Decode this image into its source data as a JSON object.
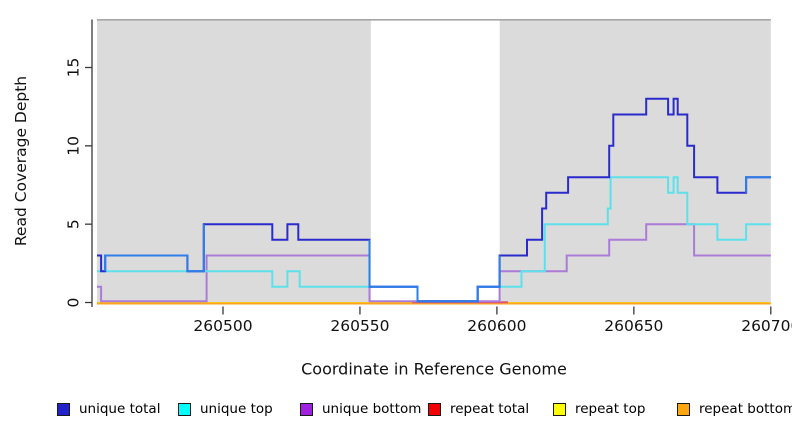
{
  "chart_data": {
    "type": "line",
    "step": true,
    "title": "",
    "xlabel": "Coordinate in Reference Genome",
    "ylabel": "Read Coverage Depth",
    "x_range": [
      260454,
      260700
    ],
    "ylim": [
      0,
      18
    ],
    "grid": false,
    "y_ticks": [
      0,
      5,
      10,
      15
    ],
    "x_ticks": [
      260500,
      260550,
      260600,
      260650,
      260700
    ],
    "shaded_regions": [
      {
        "from": 260454,
        "to": 260554,
        "color": "#dbdbdb"
      },
      {
        "from": 260601,
        "to": 260700,
        "color": "#dbdbdb"
      }
    ],
    "gap_region": {
      "from": 260554,
      "to": 260601,
      "color": "#ffffff"
    },
    "series": [
      {
        "name": "unique total",
        "color": "#2b2bcd",
        "color_segments": [
          {
            "from": 260457,
            "to": 260493,
            "color": "#2f7de8"
          },
          {
            "from": 260553.5,
            "to": 260601,
            "color": "#2f7de8"
          },
          {
            "from": 260691,
            "to": 260700,
            "color": "#2f7de8"
          }
        ],
        "points": [
          [
            260454,
            3
          ],
          [
            260455.5,
            2
          ],
          [
            260457,
            3
          ],
          [
            260487,
            2
          ],
          [
            260493,
            5
          ],
          [
            260518,
            4
          ],
          [
            260523.5,
            5
          ],
          [
            260527.5,
            4
          ],
          [
            260553.5,
            1
          ],
          [
            260571,
            0
          ],
          [
            260593,
            1
          ],
          [
            260601,
            3
          ],
          [
            260611,
            4
          ],
          [
            260616.5,
            6
          ],
          [
            260618,
            7
          ],
          [
            260626,
            8
          ],
          [
            260641,
            10
          ],
          [
            260642.5,
            12
          ],
          [
            260654.5,
            13
          ],
          [
            260662.5,
            12
          ],
          [
            260664.5,
            13
          ],
          [
            260666,
            12
          ],
          [
            260669.5,
            10
          ],
          [
            260672,
            8
          ],
          [
            260680.5,
            7
          ],
          [
            260691,
            8
          ]
        ]
      },
      {
        "name": "unique top",
        "color": "#5ce1ea",
        "points": [
          [
            260454,
            2
          ],
          [
            260518,
            1
          ],
          [
            260523.5,
            2
          ],
          [
            260528,
            1
          ],
          [
            260571,
            0
          ],
          [
            260593,
            1
          ],
          [
            260609,
            2
          ],
          [
            260617.5,
            5
          ],
          [
            260640.5,
            6
          ],
          [
            260641.5,
            8
          ],
          [
            260662.5,
            7
          ],
          [
            260664.5,
            8
          ],
          [
            260666,
            7
          ],
          [
            260669.5,
            5
          ],
          [
            260680.5,
            4
          ],
          [
            260691,
            5
          ]
        ]
      },
      {
        "name": "unique bottom",
        "color": "#ab7bd8",
        "points": [
          [
            260454,
            1
          ],
          [
            260455.5,
            0
          ],
          [
            260494,
            3
          ],
          [
            260553.5,
            0
          ],
          [
            260601,
            2
          ],
          [
            260625.5,
            3
          ],
          [
            260641,
            4
          ],
          [
            260654.5,
            5
          ],
          [
            260672,
            3
          ]
        ]
      },
      {
        "name": "repeat total",
        "color": "#e05575",
        "points": [
          [
            260454,
            0
          ]
        ]
      },
      {
        "name": "repeat top",
        "color": "#f2e620",
        "points": [
          [
            260454,
            0
          ]
        ]
      },
      {
        "name": "repeat bottom",
        "color": "#ffa41e",
        "points": [
          [
            260454,
            0
          ]
        ]
      }
    ]
  },
  "legend": {
    "items": [
      {
        "label": "unique total",
        "fill": "#2222cc"
      },
      {
        "label": "unique top",
        "fill": "#00ffff"
      },
      {
        "label": "unique bottom",
        "fill": "#a020e0"
      },
      {
        "label": "repeat total",
        "fill": "#f50000"
      },
      {
        "label": "repeat top",
        "fill": "#ffff00"
      },
      {
        "label": "repeat bottom",
        "fill": "#ffa510"
      }
    ]
  }
}
